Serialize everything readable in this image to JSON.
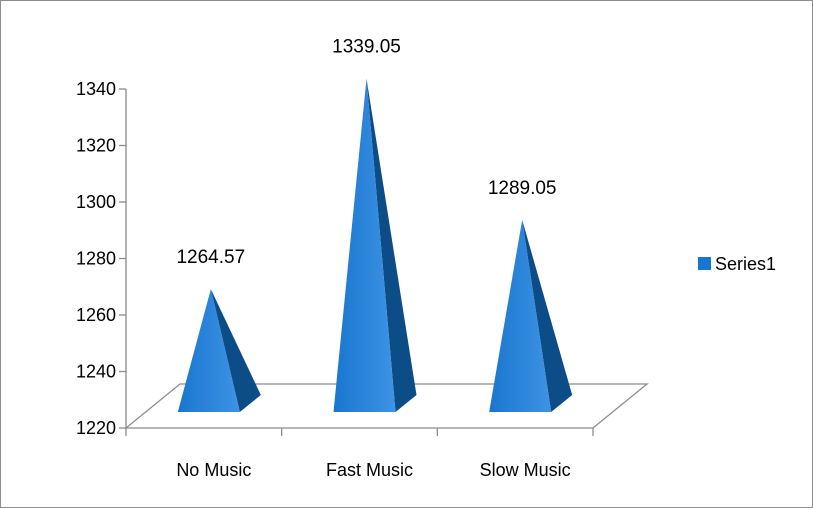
{
  "chart_data": {
    "type": "bar",
    "categories": [
      "No Music",
      "Fast Music",
      "Slow Music"
    ],
    "series": [
      {
        "name": "Series1",
        "values": [
          1264.57,
          1339.05,
          1289.05
        ]
      }
    ],
    "data_labels": [
      "1264.57",
      "1339.05",
      "1289.05"
    ],
    "ylim": [
      1220,
      1340
    ],
    "yticks": [
      1220,
      1240,
      1260,
      1280,
      1300,
      1320,
      1340
    ],
    "title": "",
    "xlabel": "",
    "ylabel": "",
    "legend": "right",
    "grid": false,
    "mark_shape": "pyramid",
    "colors": {
      "front": "#1976cf",
      "front_light": "#3e93e4",
      "side": "#0d4d87",
      "floor": "#8c8c8c"
    }
  }
}
